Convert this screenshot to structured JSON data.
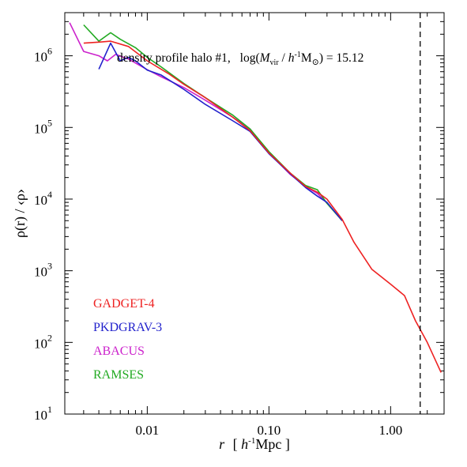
{
  "chart_data": {
    "type": "line",
    "title": "density profile halo #1,",
    "title_formula": {
      "prefix": "log(",
      "m": "M",
      "m_sub": "vir",
      "slash": " / ",
      "h": "h",
      "h_sup": "-1",
      "msun": "M",
      "msun_sub": "⊙",
      "suffix": ") = 15.12"
    },
    "xlabel": {
      "var": "r",
      "open": "[ ",
      "h": "h",
      "h_sup": "-1",
      "unit": "Mpc ]"
    },
    "ylabel": "ρ(r) / ‹ρ›",
    "x_scale": "log",
    "y_scale": "log",
    "xlim": [
      0.0021,
      2.75
    ],
    "ylim": [
      10,
      4000000
    ],
    "x_ticks": [
      {
        "value": 0.01,
        "label": "0.01"
      },
      {
        "value": 0.1,
        "label": "0.10"
      },
      {
        "value": 1,
        "label": "1.00"
      }
    ],
    "y_ticks": [
      {
        "value": 10,
        "base": "10",
        "exp": "1"
      },
      {
        "value": 100,
        "base": "10",
        "exp": "2"
      },
      {
        "value": 1000,
        "base": "10",
        "exp": "3"
      },
      {
        "value": 10000,
        "base": "10",
        "exp": "4"
      },
      {
        "value": 100000,
        "base": "10",
        "exp": "5"
      },
      {
        "value": 1000000,
        "base": "10",
        "exp": "6"
      }
    ],
    "vline": {
      "x": 1.75,
      "style": "dashed"
    },
    "legend_placement": "bottom-left",
    "grid": false,
    "series": [
      {
        "name": "ABACUS",
        "color": "#cc22cc",
        "x": [
          0.0023,
          0.003,
          0.004,
          0.0047,
          0.0055,
          0.007,
          0.01,
          0.013,
          0.02,
          0.03,
          0.05,
          0.07,
          0.1,
          0.15,
          0.2,
          0.25,
          0.3,
          0.4
        ],
        "y": [
          2900000,
          1150000,
          1000000,
          850000,
          1050000,
          900000,
          640000,
          510000,
          360000,
          240000,
          140000,
          95000,
          44000,
          22000,
          15000,
          12000,
          8800,
          5000
        ]
      },
      {
        "name": "RAMSES",
        "color": "#22aa22",
        "x": [
          0.003,
          0.004,
          0.005,
          0.006,
          0.008,
          0.01,
          0.013,
          0.02,
          0.03,
          0.05,
          0.07,
          0.1,
          0.15,
          0.2,
          0.25,
          0.3,
          0.4
        ],
        "y": [
          2700000,
          1600000,
          2100000,
          1700000,
          1300000,
          950000,
          700000,
          410000,
          260000,
          150000,
          95000,
          46000,
          23000,
          15500,
          13500,
          8700,
          5000
        ]
      },
      {
        "name": "PKDGRAV-3",
        "color": "#2222cc",
        "x": [
          0.004,
          0.005,
          0.006,
          0.007,
          0.008,
          0.01,
          0.013,
          0.02,
          0.03,
          0.05,
          0.07,
          0.1,
          0.15,
          0.2,
          0.25,
          0.3,
          0.4
        ],
        "y": [
          650000,
          1500000,
          850000,
          950000,
          850000,
          630000,
          540000,
          340000,
          210000,
          125000,
          88000,
          43000,
          22500,
          14500,
          11000,
          9000,
          5000
        ]
      },
      {
        "name": "GADGET-4",
        "color": "#ee2222",
        "x": [
          0.003,
          0.004,
          0.005,
          0.007,
          0.01,
          0.015,
          0.02,
          0.03,
          0.05,
          0.07,
          0.1,
          0.15,
          0.2,
          0.25,
          0.3,
          0.4,
          0.5,
          0.7,
          1.0,
          1.3,
          1.6,
          2.0,
          2.6
        ],
        "y": [
          1500000,
          1550000,
          1600000,
          1350000,
          850000,
          560000,
          400000,
          260000,
          140000,
          90000,
          44000,
          23000,
          15000,
          12500,
          10000,
          5200,
          2500,
          1050,
          650,
          450,
          200,
          100,
          38
        ]
      }
    ],
    "legend": [
      {
        "name": "GADGET-4",
        "color": "#ee2222"
      },
      {
        "name": "PKDGRAV-3",
        "color": "#2222cc"
      },
      {
        "name": "ABACUS",
        "color": "#cc22cc"
      },
      {
        "name": "RAMSES",
        "color": "#22aa22"
      }
    ]
  }
}
